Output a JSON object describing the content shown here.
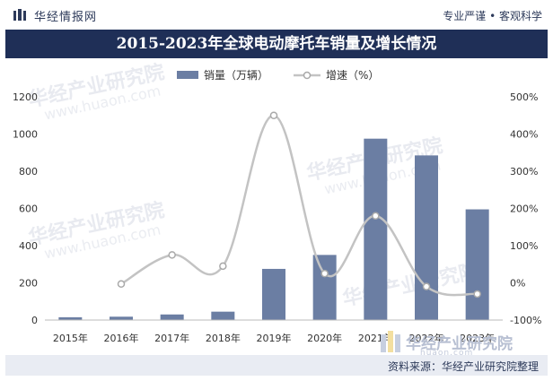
{
  "header": {
    "brand": "华经情报网",
    "slogan": "专业严谨 • 客观科学"
  },
  "title": "2015-2023年全球电动摩托车销量及增长情况",
  "footer": {
    "source": "资料来源：华经产业研究院整理"
  },
  "watermark": {
    "text": "华经产业研究院",
    "url": "www.huaon.com",
    "logo_text": "华经产业研究院",
    "logo_url": "huaon.com"
  },
  "colors": {
    "title_bg": "#1f2f57",
    "bar": "#6b7ea3",
    "line": "#c3c3c3",
    "footer_bg": "#e9ecf3"
  },
  "chart_data": {
    "type": "bar",
    "categories": [
      "2015年",
      "2016年",
      "2017年",
      "2018年",
      "2019年",
      "2020年",
      "2021年",
      "2022年",
      "2023年"
    ],
    "series": [
      {
        "name": "销量（万辆）",
        "type": "bar",
        "axis": "left",
        "values": [
          15,
          18,
          30,
          45,
          275,
          350,
          975,
          885,
          595
        ]
      },
      {
        "name": "增速（%）",
        "type": "line",
        "axis": "right",
        "values": [
          null,
          -3,
          75,
          45,
          450,
          25,
          180,
          -10,
          -30
        ]
      }
    ],
    "ylim_left": [
      0,
      1200
    ],
    "yticks_left": [
      "0",
      "200",
      "400",
      "600",
      "800",
      "1000",
      "1200"
    ],
    "ylim_right": [
      -100,
      500
    ],
    "yticks_right": [
      "-100%",
      "0%",
      "100%",
      "200%",
      "300%",
      "400%",
      "500%"
    ],
    "legend_position": "top-center",
    "grid": false
  }
}
